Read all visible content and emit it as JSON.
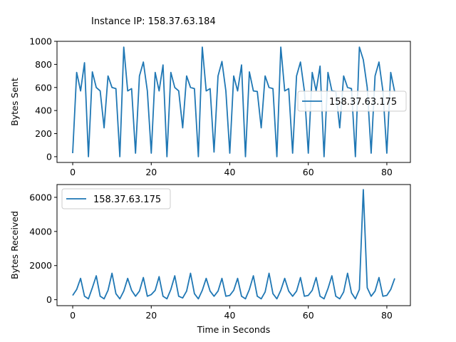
{
  "figure": {
    "suptitle": "Instance IP: 158.37.63.184"
  },
  "chart_data": [
    {
      "type": "line",
      "title": "",
      "xlabel": "",
      "ylabel": "Bytes Sent",
      "xlim": [
        -4,
        86
      ],
      "ylim": [
        -50,
        1000
      ],
      "xticks": [
        0,
        20,
        40,
        60,
        80
      ],
      "yticks": [
        0,
        200,
        400,
        600,
        800,
        1000
      ],
      "legend_position": "center-right",
      "color": "#1f77b4",
      "series": [
        {
          "name": "158.37.63.175",
          "x": [
            0,
            1,
            2,
            3,
            4,
            5,
            6,
            7,
            8,
            9,
            10,
            11,
            12,
            13,
            14,
            15,
            16,
            17,
            18,
            19,
            20,
            21,
            22,
            23,
            24,
            25,
            26,
            27,
            28,
            29,
            30,
            31,
            32,
            33,
            34,
            35,
            36,
            37,
            38,
            39,
            40,
            41,
            42,
            43,
            44,
            45,
            46,
            47,
            48,
            49,
            50,
            51,
            52,
            53,
            54,
            55,
            56,
            57,
            58,
            59,
            60,
            61,
            62,
            63,
            64,
            65,
            66,
            67,
            68,
            69,
            70,
            71,
            72,
            73,
            74,
            75,
            76,
            77,
            78,
            79,
            80,
            81,
            82
          ],
          "values": [
            30,
            730,
            570,
            815,
            0,
            735,
            600,
            570,
            250,
            700,
            600,
            590,
            0,
            950,
            570,
            590,
            30,
            700,
            820,
            570,
            30,
            730,
            570,
            795,
            0,
            730,
            600,
            570,
            250,
            700,
            600,
            590,
            0,
            950,
            570,
            590,
            40,
            700,
            825,
            570,
            30,
            700,
            570,
            795,
            0,
            735,
            570,
            565,
            250,
            700,
            600,
            590,
            0,
            950,
            570,
            590,
            30,
            700,
            820,
            570,
            30,
            730,
            570,
            785,
            0,
            730,
            570,
            565,
            250,
            700,
            600,
            590,
            0,
            950,
            840,
            600,
            30,
            700,
            820,
            570,
            30,
            730,
            560
          ]
        }
      ]
    },
    {
      "type": "line",
      "title": "",
      "xlabel": "Time in Seconds",
      "ylabel": "Bytes Received",
      "xlim": [
        -4,
        86
      ],
      "ylim": [
        -350,
        6750
      ],
      "xticks": [
        0,
        20,
        40,
        60,
        80
      ],
      "yticks": [
        0,
        2000,
        4000,
        6000
      ],
      "legend_position": "upper-left",
      "color": "#1f77b4",
      "series": [
        {
          "name": "158.37.63.175",
          "x": [
            0,
            1,
            2,
            3,
            4,
            5,
            6,
            7,
            8,
            9,
            10,
            11,
            12,
            13,
            14,
            15,
            16,
            17,
            18,
            19,
            20,
            21,
            22,
            23,
            24,
            25,
            26,
            27,
            28,
            29,
            30,
            31,
            32,
            33,
            34,
            35,
            36,
            37,
            38,
            39,
            40,
            41,
            42,
            43,
            44,
            45,
            46,
            47,
            48,
            49,
            50,
            51,
            52,
            53,
            54,
            55,
            56,
            57,
            58,
            59,
            60,
            61,
            62,
            63,
            64,
            65,
            66,
            67,
            68,
            69,
            70,
            71,
            72,
            73,
            74,
            75,
            76,
            77,
            78,
            79,
            80,
            81,
            82
          ],
          "values": [
            250,
            600,
            1250,
            200,
            50,
            700,
            1400,
            200,
            50,
            550,
            1550,
            350,
            50,
            500,
            1250,
            550,
            200,
            500,
            1300,
            200,
            300,
            550,
            1350,
            200,
            50,
            600,
            1400,
            200,
            100,
            500,
            1550,
            350,
            50,
            550,
            1250,
            500,
            200,
            500,
            1250,
            200,
            250,
            550,
            1250,
            200,
            50,
            600,
            1400,
            200,
            50,
            450,
            1550,
            350,
            50,
            550,
            1250,
            500,
            200,
            500,
            1300,
            200,
            250,
            550,
            1300,
            200,
            50,
            650,
            1400,
            200,
            50,
            450,
            1550,
            400,
            50,
            600,
            6450,
            700,
            200,
            500,
            1300,
            200,
            250,
            600,
            1250
          ]
        }
      ]
    }
  ]
}
